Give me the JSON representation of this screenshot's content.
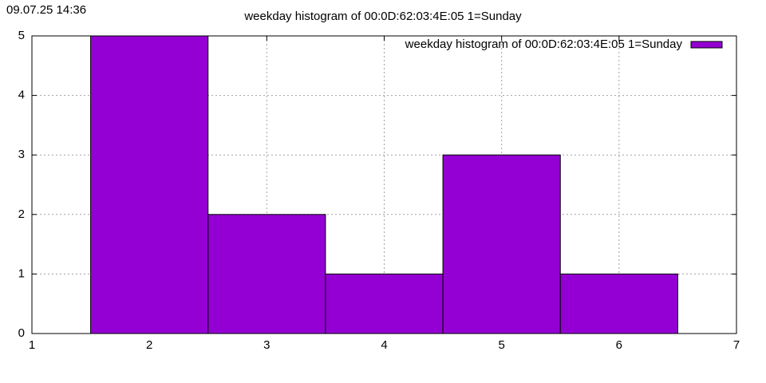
{
  "chart_data": {
    "type": "histogram",
    "timestamp": "09.07.25 14:36",
    "title": "weekday histogram of 00:0D:62:03:4E:05 1=Sunday",
    "bins": [
      1.5,
      2.5,
      3.5,
      4.5,
      5.5,
      6.5
    ],
    "series": [
      {
        "name": "weekday histogram of 00:0D:62:03:4E:05 1=Sunday",
        "color": "#9400d3",
        "values": [
          5,
          2,
          1,
          3,
          1
        ]
      }
    ],
    "xlim": [
      1,
      7
    ],
    "xticks": [
      1,
      2,
      3,
      4,
      5,
      6,
      7
    ],
    "ylim": [
      0,
      5
    ],
    "yticks": [
      0,
      1,
      2,
      3,
      4,
      5
    ],
    "grid": true,
    "legend": "top-right"
  }
}
